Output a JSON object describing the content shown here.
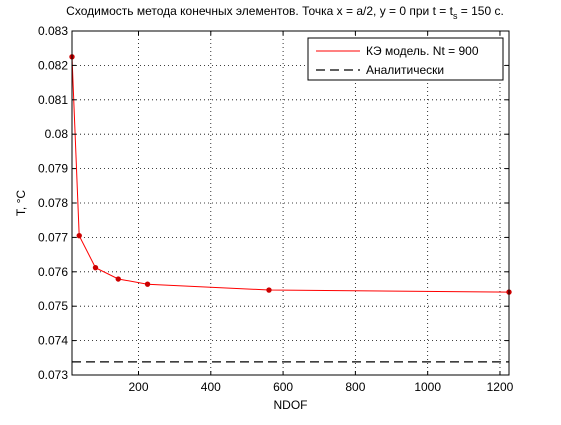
{
  "chart_data": {
    "type": "line",
    "title": "Сходимость метода конечных элементов. Точка x = a/2, y = 0 при t = t",
    "title_sub": "s",
    "title_tail": " = 150 с.",
    "xlabel": "NDOF",
    "ylabel": "T, °C",
    "xlim": [
      16,
      1225
    ],
    "ylim": [
      0.073,
      0.083
    ],
    "xticks": [
      200,
      400,
      600,
      800,
      1000,
      1200
    ],
    "xtick_labels": [
      "200",
      "400",
      "600",
      "800",
      "1000",
      "1200"
    ],
    "yticks": [
      0.073,
      0.074,
      0.075,
      0.076,
      0.077,
      0.078,
      0.079,
      0.08,
      0.081,
      0.082,
      0.083
    ],
    "ytick_labels": [
      "0.073",
      "0.074",
      "0.075",
      "0.076",
      "0.077",
      "0.078",
      "0.079",
      "0.08",
      "0.081",
      "0.082",
      "0.083"
    ],
    "grid": true,
    "legend_position": "top-right",
    "series": [
      {
        "name": "КЭ модель. Nt = 900",
        "color": "#ff0000",
        "marker_color": "#cc0000",
        "style": "solid-with-markers",
        "x": [
          16,
          36,
          81,
          144,
          225,
          561,
          1225
        ],
        "y": [
          0.08225,
          0.07705,
          0.07612,
          0.07579,
          0.07564,
          0.07547,
          0.07541
        ]
      },
      {
        "name": "Аналитически",
        "color": "#000000",
        "style": "dashed",
        "x": [
          16,
          1225
        ],
        "y": [
          0.07338,
          0.07338
        ]
      }
    ]
  }
}
